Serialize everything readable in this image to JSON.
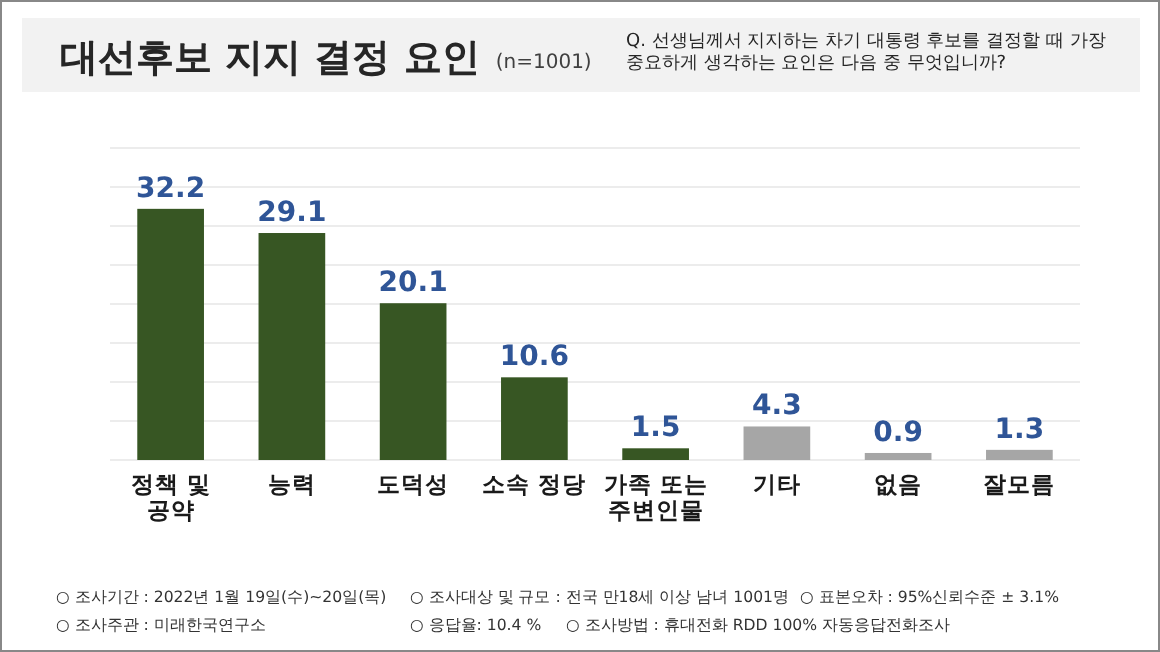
{
  "chart_data": {
    "type": "bar",
    "title": "대선후보 지지 결정 요인",
    "subtitle": "(n=1001)",
    "categories": [
      "정책 및\n공약",
      "능력",
      "도덕성",
      "소속 정당",
      "가족 또는\n주변인물",
      "기타",
      "없음",
      "잘모름"
    ],
    "values": [
      32.2,
      29.1,
      20.1,
      10.6,
      1.5,
      4.3,
      0.9,
      1.3
    ],
    "colors": [
      "#375623",
      "#375623",
      "#375623",
      "#375623",
      "#375623",
      "#a6a6a6",
      "#a6a6a6",
      "#a6a6a6"
    ],
    "data_labels": true,
    "ylim": [
      0,
      40
    ],
    "yticks": [
      {
        "value": 0,
        "label": null
      },
      {
        "value": 5,
        "label": null
      },
      {
        "value": 10,
        "label": null
      },
      {
        "value": 15,
        "label": null
      },
      {
        "value": 20,
        "label": null
      },
      {
        "value": 25,
        "label": null
      },
      {
        "value": 30,
        "label": null
      },
      {
        "value": 35,
        "label": null
      },
      {
        "value": 40,
        "label": null
      }
    ],
    "grid": "y",
    "annotations": [
      "Q. 선생님께서 지지하는 차기 대통령 후보를 결정할 때 가장 중요하게 생각하는 요인은 다음 중 무엇입니까?",
      "○ 조사기간 : 2022년 1월 19일(수)~20일(목)",
      "○ 조사대상 및 규모 : 전국 만18세 이상 남녀 1001명",
      "○ 표본오차 : 95%신뢰수준 ± 3.1%",
      "○ 조사주관 : 미래한국연구소",
      "○ 응답율: 10.4 %",
      "○ 조사방법 : 휴대전화 RDD 100% 자동응답전화조사"
    ]
  }
}
